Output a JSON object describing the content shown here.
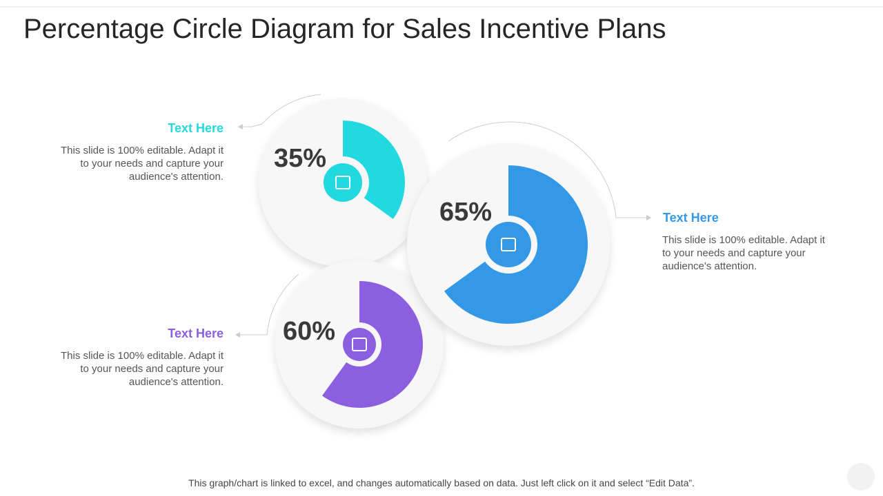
{
  "header": {
    "title": "Percentage Circle Diagram for Sales Incentive Plans"
  },
  "items": [
    {
      "heading": "Text Here",
      "body": "This slide is 100% editable. Adapt it to your needs and capture your audience's attention.",
      "value": 35,
      "value_label": "35%",
      "color": "#22d9e0"
    },
    {
      "heading": "Text Here",
      "body": "This slide is 100% editable. Adapt it to your needs and capture your audience's attention.",
      "value": 65,
      "value_label": "65%",
      "color": "#3399e6"
    },
    {
      "heading": "Text Here",
      "body": "This slide is 100% editable. Adapt it to your needs and capture your audience's attention.",
      "value": 60,
      "value_label": "60%",
      "color": "#8b5fe0"
    }
  ],
  "footer": {
    "note": "This graph/chart is linked to excel, and changes automatically based on data. Just left click on it and select “Edit Data”."
  }
}
